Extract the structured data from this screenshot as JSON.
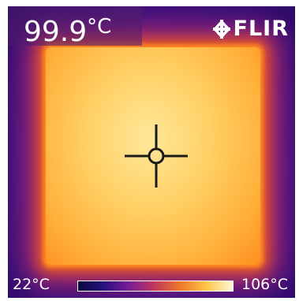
{
  "readout": {
    "value": "99.9",
    "unit": "°C"
  },
  "brand": {
    "name": "FLIR",
    "mark_icon": "flir-logo-icon"
  },
  "scale": {
    "min_label": "22°C",
    "max_label": "106°C",
    "min_value": 22,
    "max_value": 106,
    "colors": [
      "#0a0a40",
      "#2a1080",
      "#7a1e96",
      "#c23a5a",
      "#ef7a2a",
      "#ffc84a",
      "#fff6d8"
    ]
  },
  "cursor": {
    "icon": "crosshair-icon"
  },
  "colors": {
    "background": "#3e1382",
    "hot": "#ffd064",
    "text": "#ffffff"
  }
}
